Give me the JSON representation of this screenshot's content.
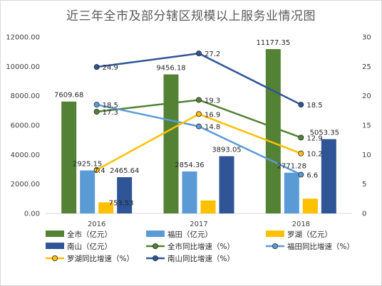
{
  "chart_data": {
    "type": "bar",
    "title": "近三年全市及部分辖区规模以上服务业情况图",
    "categories": [
      "2016",
      "2017",
      "2018"
    ],
    "y_left": {
      "min": 0,
      "max": 12000,
      "ticks": [
        "0.00",
        "2000.00",
        "4000.00",
        "6000.00",
        "8000.00",
        "10000.00",
        "12000.00"
      ]
    },
    "y_right": {
      "min": 0,
      "max": 30,
      "ticks": [
        "0",
        "5",
        "10",
        "15",
        "20",
        "25",
        "30"
      ]
    },
    "bar_series": [
      {
        "name": "全市（亿元）",
        "color": "#548235",
        "values": [
          7609.68,
          9456.18,
          11177.35
        ],
        "labels": [
          "7609.68",
          "9456.18",
          "11177.35"
        ]
      },
      {
        "name": "福田（亿元）",
        "color": "#5b9bd5",
        "values": [
          2925.15,
          2854.36,
          2771.28
        ],
        "labels": [
          "2925.15",
          "2854.36",
          "2771.28"
        ]
      },
      {
        "name": "罗湖（亿元）",
        "color": "#ffc000",
        "values": [
          753.53,
          884,
          1004
        ],
        "labels": [
          "753.53",
          "",
          ""
        ]
      },
      {
        "name": "南山（亿元）",
        "color": "#2f5597",
        "values": [
          2465.64,
          3893.05,
          5053.35
        ],
        "labels": [
          "2465.64",
          "3893.05",
          "5053.35"
        ]
      }
    ],
    "line_series": [
      {
        "name": "全市同比增速（%）",
        "color": "#548235",
        "values": [
          17.3,
          19.3,
          12.9
        ],
        "labels": [
          "17.3",
          "19.3",
          "12.9"
        ]
      },
      {
        "name": "福田同比增速（%）",
        "color": "#5b9bd5",
        "values": [
          18.5,
          14.8,
          6.6
        ],
        "labels": [
          "18.5",
          "14.8",
          "6.6"
        ]
      },
      {
        "name": "罗湖同比增速（%）",
        "color": "#ffc000",
        "values": [
          7.4,
          16.9,
          10.2
        ],
        "labels": [
          "7.4",
          "16.9",
          "10.2"
        ]
      },
      {
        "name": "南山同比增速（%）",
        "color": "#2f5597",
        "values": [
          24.9,
          27.2,
          18.5
        ],
        "labels": [
          "24.9",
          "27.2",
          "18.5"
        ]
      }
    ],
    "grid": false,
    "legend_position": "bottom"
  }
}
